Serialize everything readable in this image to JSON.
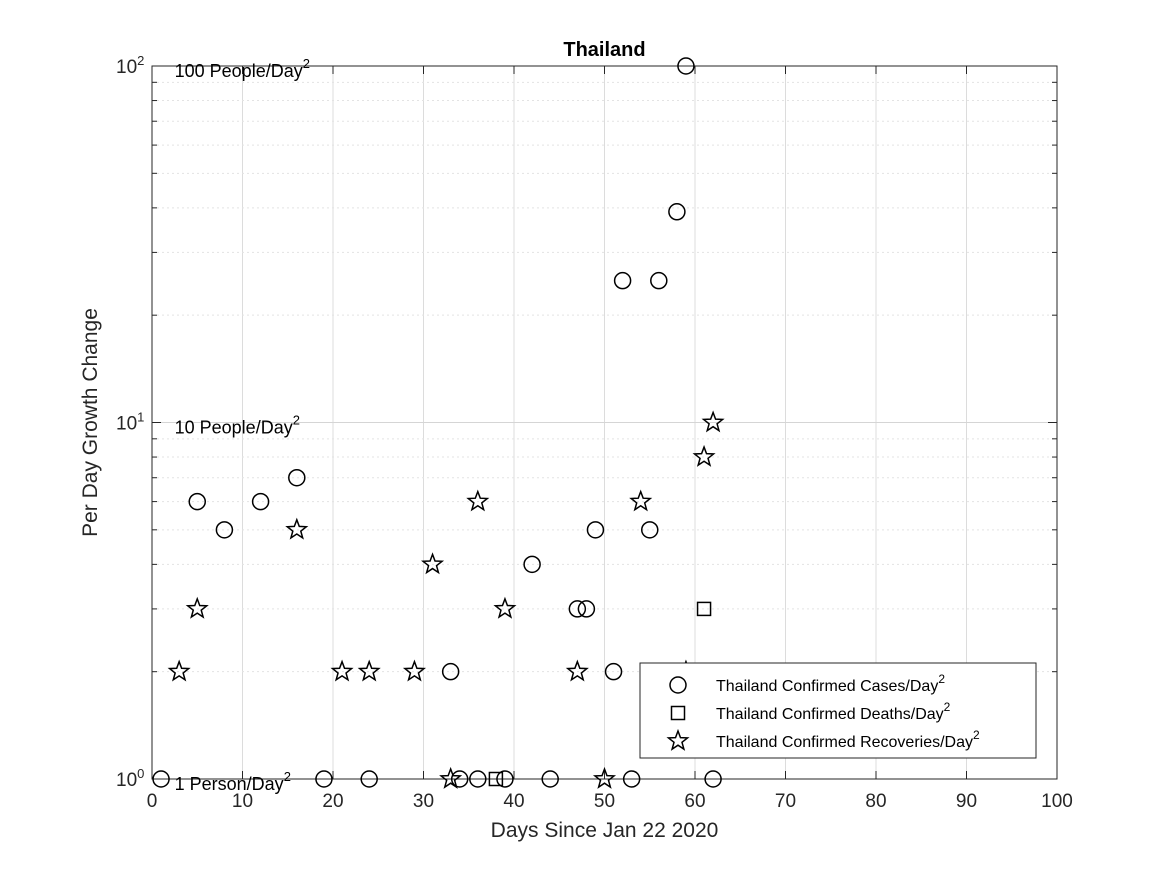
{
  "chart_data": {
    "type": "scatter",
    "title": "Thailand",
    "xlabel": "Days Since Jan 22 2020",
    "ylabel": "Per Day Growth Change",
    "xlim": [
      0,
      100
    ],
    "ylim": [
      1,
      100
    ],
    "yscale": "log",
    "grid": true,
    "legend_position": "bottom-right",
    "x_ticks": [
      "0",
      "10",
      "20",
      "30",
      "40",
      "50",
      "60",
      "70",
      "80",
      "90",
      "100"
    ],
    "y_ticks": [
      {
        "base": "10",
        "exp": "0",
        "value": 1
      },
      {
        "base": "10",
        "exp": "1",
        "value": 10
      },
      {
        "base": "10",
        "exp": "2",
        "value": 100
      }
    ],
    "annotations": [
      {
        "text": "100 People/Day",
        "sup": "2",
        "x": 2.5,
        "y": 100
      },
      {
        "text": "10 People/Day",
        "sup": "2",
        "x": 2.5,
        "y": 10
      },
      {
        "text": "1 Person/Day",
        "sup": "2",
        "x": 2.5,
        "y": 1
      }
    ],
    "series": [
      {
        "name": "Thailand Confirmed Cases/Day",
        "name_sup": "2",
        "marker": "circle",
        "points": [
          [
            1,
            1
          ],
          [
            5,
            6
          ],
          [
            8,
            5
          ],
          [
            12,
            6
          ],
          [
            16,
            7
          ],
          [
            19,
            1
          ],
          [
            24,
            1
          ],
          [
            33,
            2
          ],
          [
            34,
            1
          ],
          [
            36,
            1
          ],
          [
            39,
            1
          ],
          [
            42,
            4
          ],
          [
            44,
            1
          ],
          [
            47,
            3
          ],
          [
            48,
            3
          ],
          [
            49,
            5
          ],
          [
            51,
            2
          ],
          [
            52,
            25
          ],
          [
            53,
            1
          ],
          [
            55,
            5
          ],
          [
            56,
            25
          ],
          [
            58,
            39
          ],
          [
            59,
            100
          ],
          [
            62,
            1
          ]
        ]
      },
      {
        "name": "Thailand Confirmed Deaths/Day",
        "name_sup": "2",
        "marker": "square",
        "points": [
          [
            38,
            1
          ],
          [
            61,
            3
          ]
        ]
      },
      {
        "name": "Thailand Confirmed Recoveries/Day",
        "name_sup": "2",
        "marker": "star",
        "points": [
          [
            3,
            2
          ],
          [
            5,
            3
          ],
          [
            16,
            5
          ],
          [
            21,
            2
          ],
          [
            24,
            2
          ],
          [
            29,
            2
          ],
          [
            31,
            4
          ],
          [
            33,
            1
          ],
          [
            36,
            6
          ],
          [
            39,
            3
          ],
          [
            47,
            2
          ],
          [
            50,
            1
          ],
          [
            54,
            6
          ],
          [
            59,
            2
          ],
          [
            61,
            8
          ],
          [
            62,
            10
          ]
        ]
      }
    ]
  }
}
